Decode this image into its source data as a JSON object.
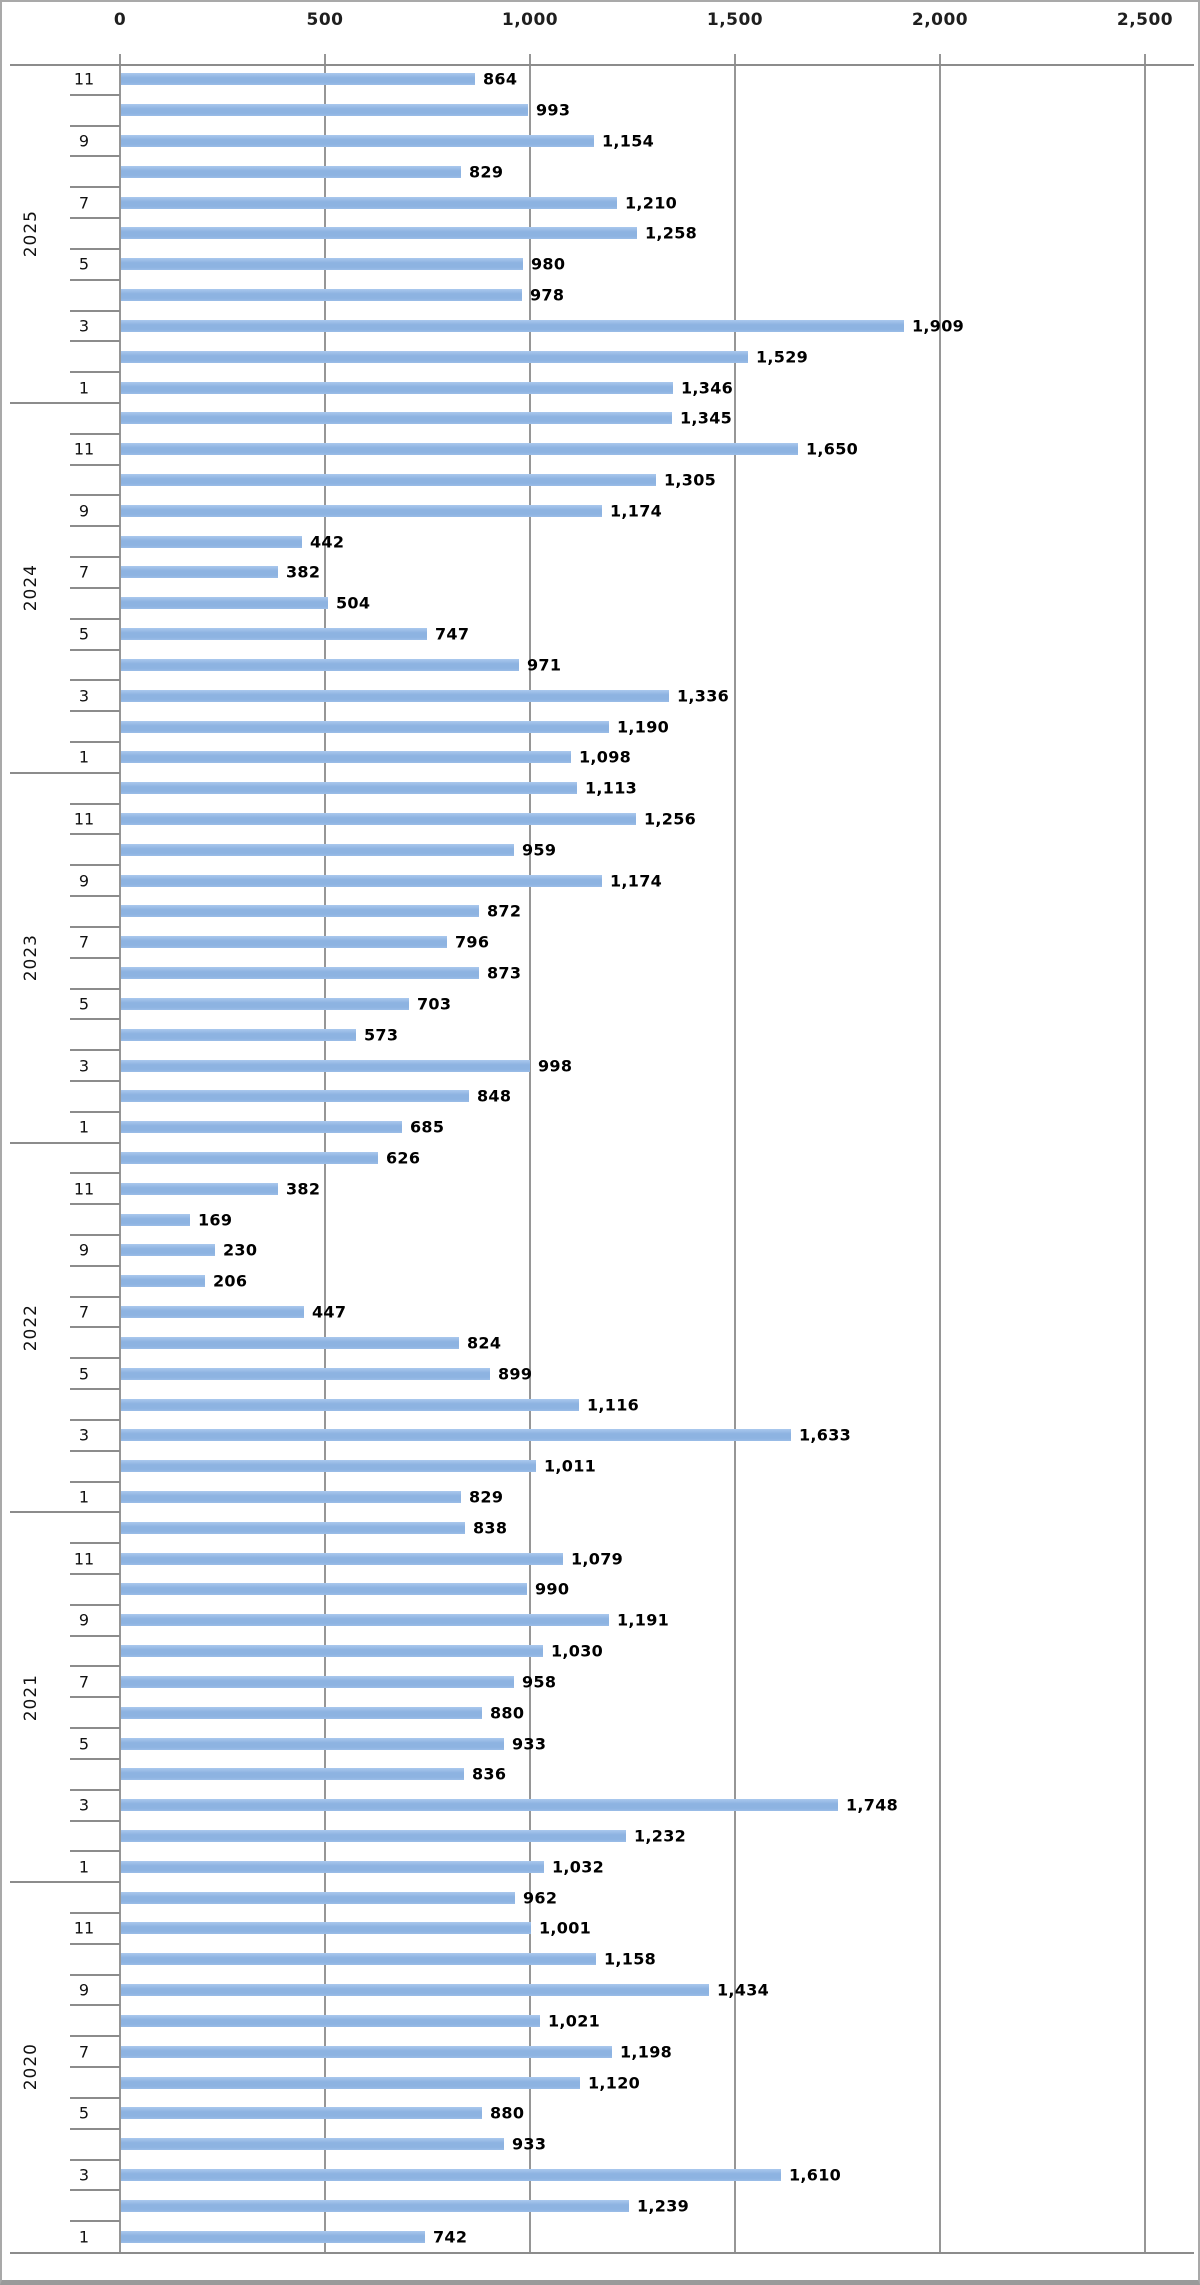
{
  "chart_data": {
    "type": "bar",
    "orientation": "horizontal",
    "title": "",
    "xlabel": "",
    "ylabel": "",
    "legend": null,
    "value_axis": {
      "position": "top",
      "min": 0,
      "max": 2500,
      "tick_interval": 500,
      "tick_labels": [
        "0",
        "500",
        "1,000",
        "1,500",
        "2,000",
        "2,500"
      ],
      "gridlines": true
    },
    "category_axis": {
      "position": "left",
      "levels": [
        "month",
        "year"
      ],
      "labeled_months": [
        1,
        3,
        5,
        7,
        9,
        11
      ],
      "order": "newest-first, month descending"
    },
    "bar_color": "#8db3e1",
    "grid_color": "#969696",
    "label_color": "#000000",
    "groups": [
      {
        "year": "2025",
        "points": [
          {
            "month": 11,
            "value": 864,
            "label": "864"
          },
          {
            "month": 10,
            "value": 993,
            "label": "993"
          },
          {
            "month": 9,
            "value": 1154,
            "label": "1,154"
          },
          {
            "month": 8,
            "value": 829,
            "label": "829"
          },
          {
            "month": 7,
            "value": 1210,
            "label": "1,210"
          },
          {
            "month": 6,
            "value": 1258,
            "label": "1,258"
          },
          {
            "month": 5,
            "value": 980,
            "label": "980"
          },
          {
            "month": 4,
            "value": 978,
            "label": "978"
          },
          {
            "month": 3,
            "value": 1909,
            "label": "1,909"
          },
          {
            "month": 2,
            "value": 1529,
            "label": "1,529"
          },
          {
            "month": 1,
            "value": 1346,
            "label": "1,346"
          }
        ]
      },
      {
        "year": "2024",
        "points": [
          {
            "month": 12,
            "value": 1345,
            "label": "1,345"
          },
          {
            "month": 11,
            "value": 1650,
            "label": "1,650"
          },
          {
            "month": 10,
            "value": 1305,
            "label": "1,305"
          },
          {
            "month": 9,
            "value": 1174,
            "label": "1,174"
          },
          {
            "month": 8,
            "value": 442,
            "label": "442"
          },
          {
            "month": 7,
            "value": 382,
            "label": "382"
          },
          {
            "month": 6,
            "value": 504,
            "label": "504"
          },
          {
            "month": 5,
            "value": 747,
            "label": "747"
          },
          {
            "month": 4,
            "value": 971,
            "label": "971"
          },
          {
            "month": 3,
            "value": 1336,
            "label": "1,336"
          },
          {
            "month": 2,
            "value": 1190,
            "label": "1,190"
          },
          {
            "month": 1,
            "value": 1098,
            "label": "1,098"
          }
        ]
      },
      {
        "year": "2023",
        "points": [
          {
            "month": 12,
            "value": 1113,
            "label": "1,113"
          },
          {
            "month": 11,
            "value": 1256,
            "label": "1,256"
          },
          {
            "month": 10,
            "value": 959,
            "label": "959"
          },
          {
            "month": 9,
            "value": 1174,
            "label": "1,174"
          },
          {
            "month": 8,
            "value": 872,
            "label": "872"
          },
          {
            "month": 7,
            "value": 796,
            "label": "796"
          },
          {
            "month": 6,
            "value": 873,
            "label": "873"
          },
          {
            "month": 5,
            "value": 703,
            "label": "703"
          },
          {
            "month": 4,
            "value": 573,
            "label": "573"
          },
          {
            "month": 3,
            "value": 998,
            "label": "998"
          },
          {
            "month": 2,
            "value": 848,
            "label": "848"
          },
          {
            "month": 1,
            "value": 685,
            "label": "685"
          }
        ]
      },
      {
        "year": "2022",
        "points": [
          {
            "month": 12,
            "value": 626,
            "label": "626"
          },
          {
            "month": 11,
            "value": 382,
            "label": "382"
          },
          {
            "month": 10,
            "value": 169,
            "label": "169"
          },
          {
            "month": 9,
            "value": 230,
            "label": "230"
          },
          {
            "month": 8,
            "value": 206,
            "label": "206"
          },
          {
            "month": 7,
            "value": 447,
            "label": "447"
          },
          {
            "month": 6,
            "value": 824,
            "label": "824"
          },
          {
            "month": 5,
            "value": 899,
            "label": "899"
          },
          {
            "month": 4,
            "value": 1116,
            "label": "1,116"
          },
          {
            "month": 3,
            "value": 1633,
            "label": "1,633"
          },
          {
            "month": 2,
            "value": 1011,
            "label": "1,011"
          },
          {
            "month": 1,
            "value": 829,
            "label": "829"
          }
        ]
      },
      {
        "year": "2021",
        "points": [
          {
            "month": 12,
            "value": 838,
            "label": "838"
          },
          {
            "month": 11,
            "value": 1079,
            "label": "1,079"
          },
          {
            "month": 10,
            "value": 990,
            "label": "990"
          },
          {
            "month": 9,
            "value": 1191,
            "label": "1,191"
          },
          {
            "month": 8,
            "value": 1030,
            "label": "1,030"
          },
          {
            "month": 7,
            "value": 958,
            "label": "958"
          },
          {
            "month": 6,
            "value": 880,
            "label": "880"
          },
          {
            "month": 5,
            "value": 933,
            "label": "933"
          },
          {
            "month": 4,
            "value": 836,
            "label": "836"
          },
          {
            "month": 3,
            "value": 1748,
            "label": "1,748"
          },
          {
            "month": 2,
            "value": 1232,
            "label": "1,232"
          },
          {
            "month": 1,
            "value": 1032,
            "label": "1,032"
          }
        ]
      },
      {
        "year": "2020",
        "points": [
          {
            "month": 12,
            "value": 962,
            "label": "962"
          },
          {
            "month": 11,
            "value": 1001,
            "label": "1,001"
          },
          {
            "month": 10,
            "value": 1158,
            "label": "1,158"
          },
          {
            "month": 9,
            "value": 1434,
            "label": "1,434"
          },
          {
            "month": 8,
            "value": 1021,
            "label": "1,021"
          },
          {
            "month": 7,
            "value": 1198,
            "label": "1,198"
          },
          {
            "month": 6,
            "value": 1120,
            "label": "1,120"
          },
          {
            "month": 5,
            "value": 880,
            "label": "880"
          },
          {
            "month": 4,
            "value": 933,
            "label": "933"
          },
          {
            "month": 3,
            "value": 1610,
            "label": "1,610"
          },
          {
            "month": 2,
            "value": 1239,
            "label": "1,239"
          },
          {
            "month": 1,
            "value": 742,
            "label": "742"
          }
        ]
      }
    ]
  }
}
